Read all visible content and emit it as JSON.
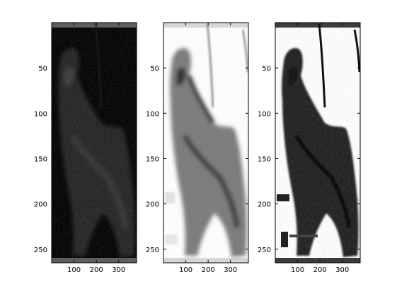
{
  "chart_data": [
    {
      "type": "image",
      "panel": "left",
      "colormap": "gray",
      "rendering": "dark silhouette on black background",
      "x_ticks": [
        100,
        200,
        300
      ],
      "y_ticks": [
        50,
        100,
        150,
        200,
        250
      ],
      "xlim": [
        0,
        380
      ],
      "ylim": [
        0,
        265
      ]
    },
    {
      "type": "image",
      "panel": "middle",
      "colormap": "gray",
      "rendering": "inverted, dark texture on white background",
      "x_ticks": [
        100,
        200,
        300
      ],
      "y_ticks": [
        50,
        100,
        150,
        200,
        250
      ],
      "xlim": [
        0,
        380
      ],
      "ylim": [
        0,
        265
      ]
    },
    {
      "type": "image",
      "panel": "right",
      "colormap": "gray",
      "rendering": "high-contrast black silhouette on white background",
      "x_ticks": [
        100,
        200,
        300
      ],
      "y_ticks": [
        50,
        100,
        150,
        200,
        250
      ],
      "xlim": [
        0,
        380
      ],
      "ylim": [
        0,
        265
      ]
    }
  ],
  "labels": {
    "x_ticks": [
      "100",
      "200",
      "300"
    ],
    "y_ticks": [
      "50",
      "100",
      "150",
      "200",
      "250"
    ]
  },
  "colors": {
    "axes": "#000000",
    "figure_background": "#ffffff"
  }
}
